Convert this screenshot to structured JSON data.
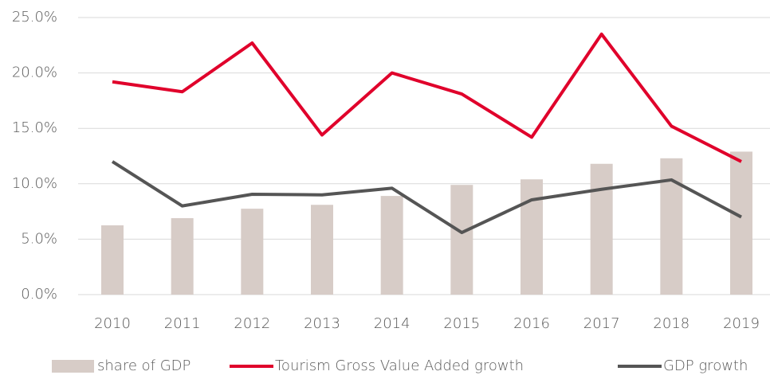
{
  "chart_data": {
    "type": "bar_line",
    "categories": [
      "2010",
      "2011",
      "2012",
      "2013",
      "2014",
      "2015",
      "2016",
      "2017",
      "2018",
      "2019"
    ],
    "series": [
      {
        "name": "share of GDP",
        "type": "bar",
        "color": "#d7ccc7",
        "values": [
          6.25,
          6.9,
          7.75,
          8.1,
          8.9,
          9.9,
          10.4,
          11.8,
          12.3,
          12.9
        ]
      },
      {
        "name": "Tourism Gross Value Added growth",
        "type": "line",
        "color": "#e0002b",
        "values": [
          19.2,
          18.3,
          22.7,
          14.4,
          20.0,
          18.1,
          14.2,
          23.5,
          15.2,
          12.0
        ]
      },
      {
        "name": "GDP growth",
        "type": "line",
        "color": "#555555",
        "values": [
          12.0,
          8.0,
          9.05,
          9.0,
          9.6,
          5.6,
          8.55,
          9.5,
          10.35,
          7.0
        ]
      }
    ],
    "ylim": [
      0,
      25
    ],
    "yticks": [
      {
        "value": 0,
        "label": "0.0%"
      },
      {
        "value": 5,
        "label": "5.0%"
      },
      {
        "value": 10,
        "label": "10.0%"
      },
      {
        "value": 15,
        "label": "15.0%"
      },
      {
        "value": 20,
        "label": "20.0%"
      },
      {
        "value": 25,
        "label": "25.0%"
      }
    ],
    "grid": true,
    "legend": "bottom"
  }
}
